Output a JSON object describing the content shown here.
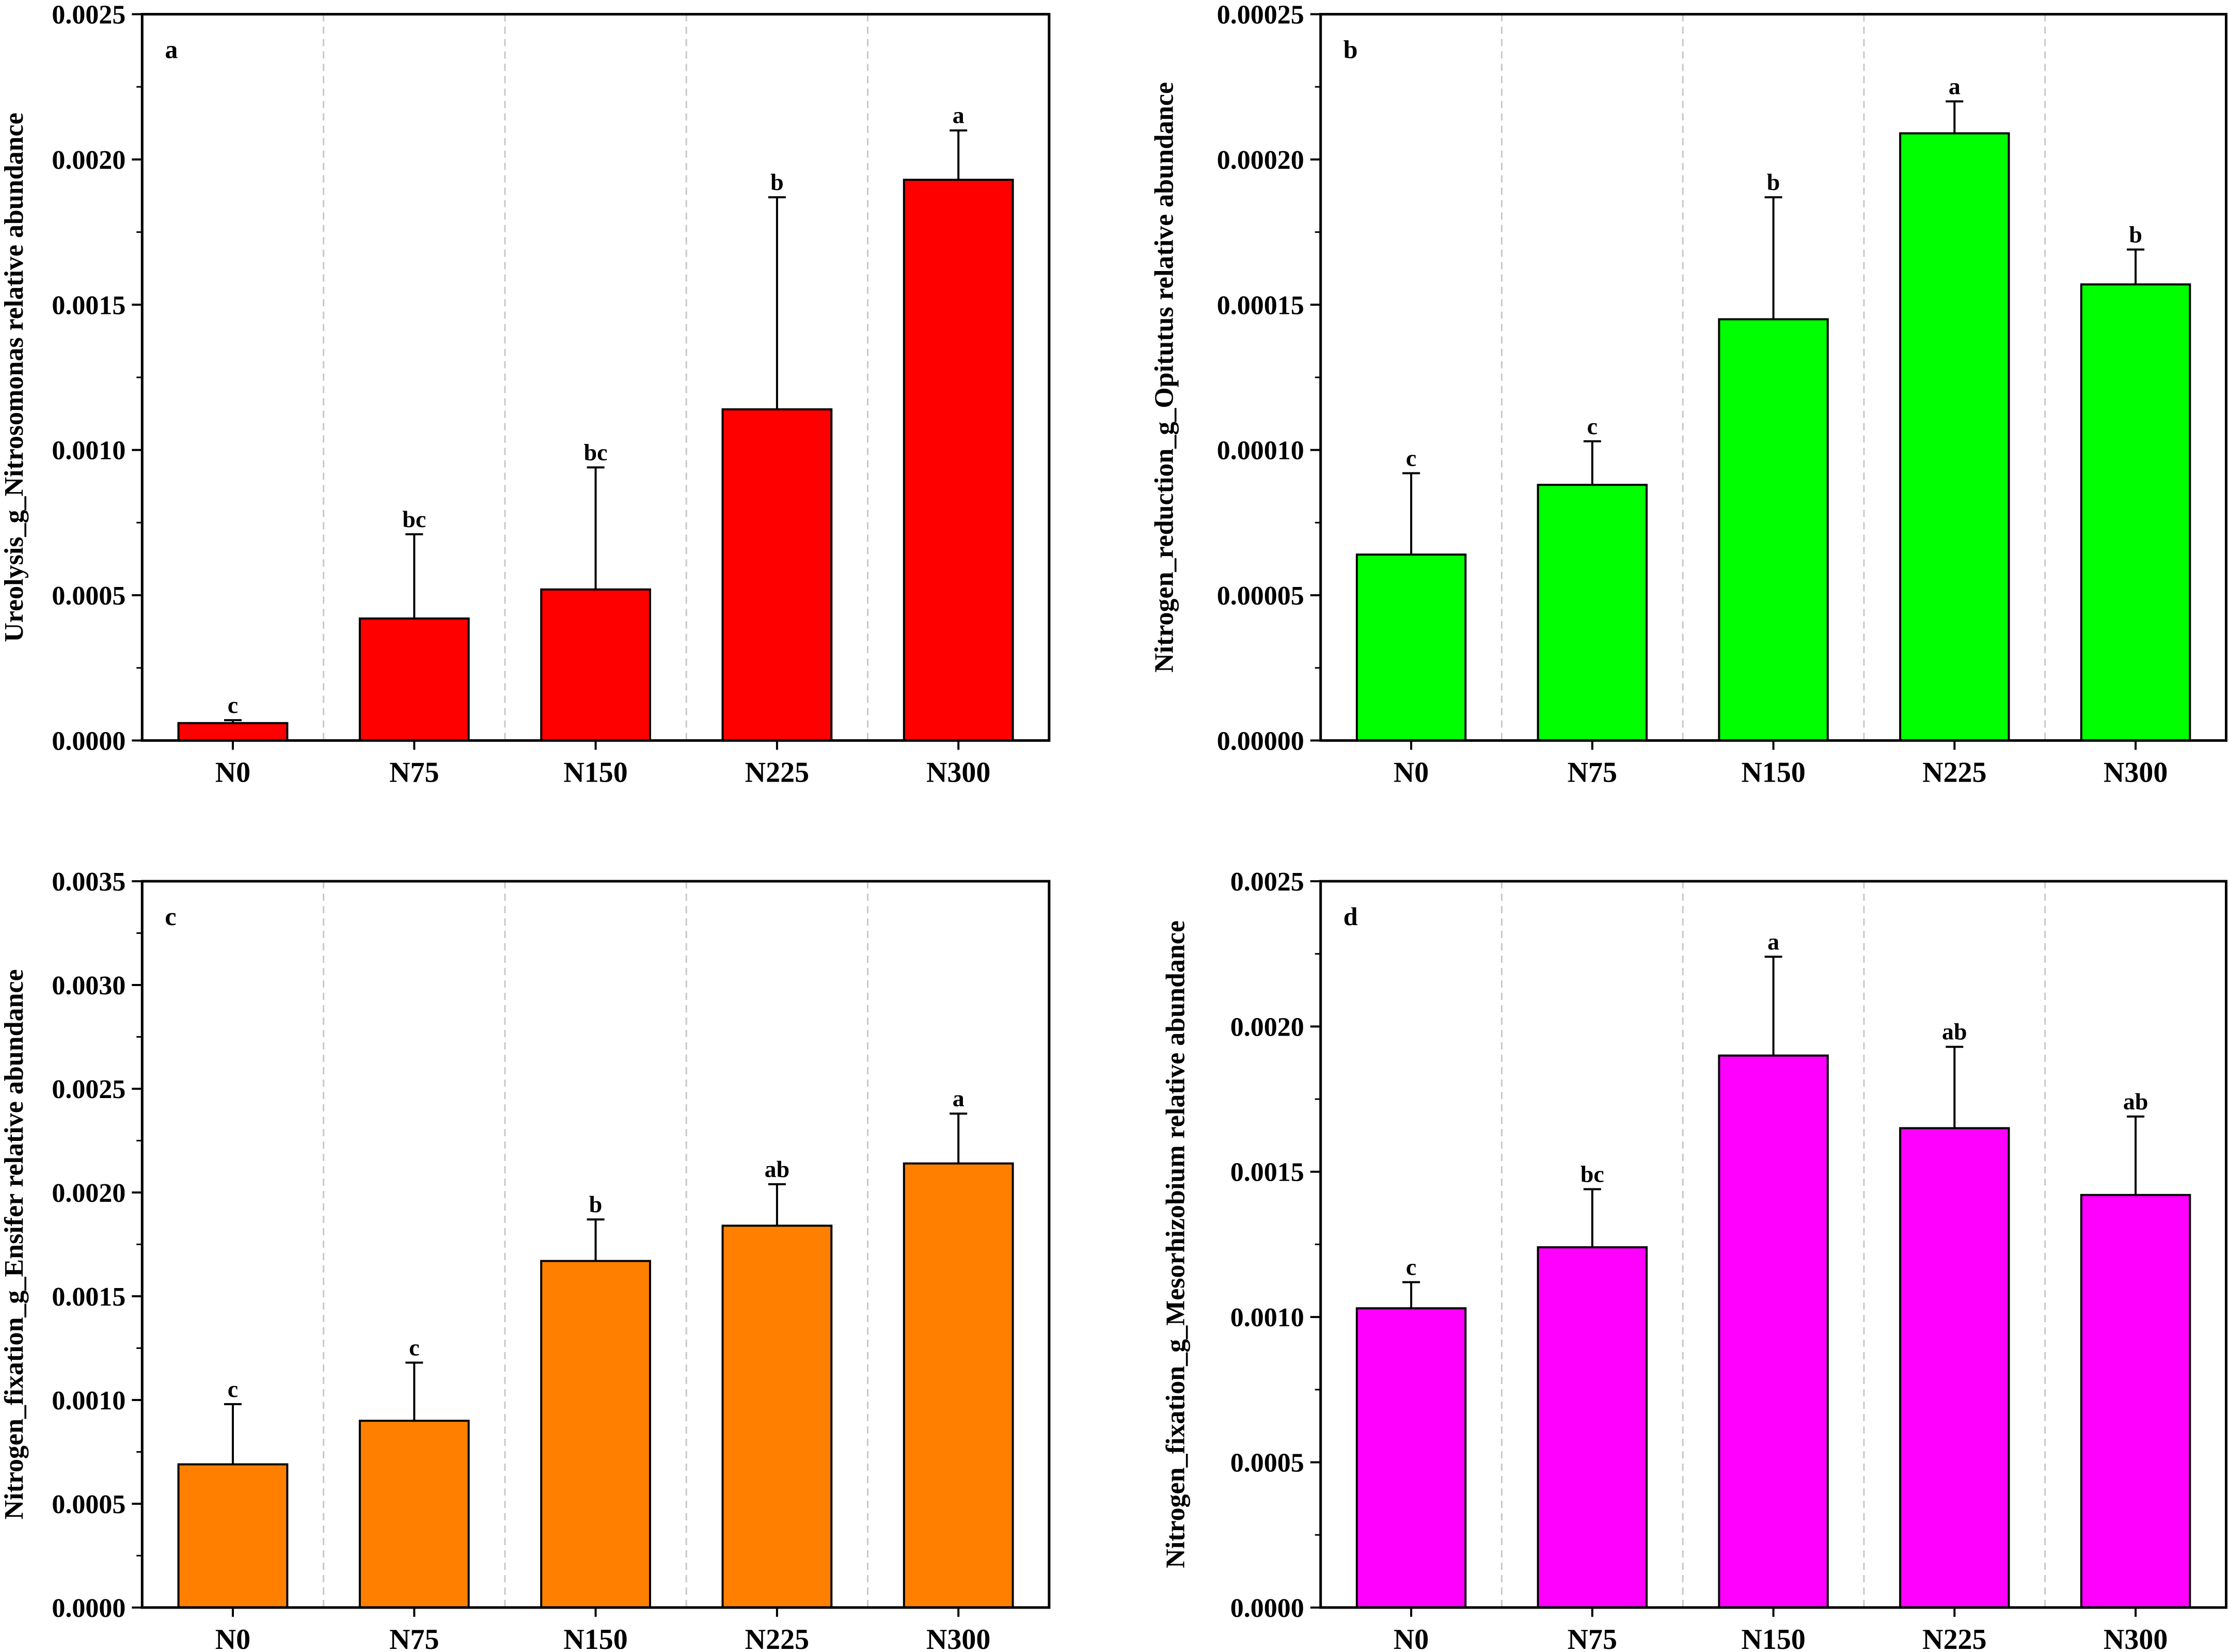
{
  "chart_data": [
    {
      "type": "bar",
      "panel": "a",
      "categories": [
        "N0",
        "N75",
        "N150",
        "N225",
        "N300"
      ],
      "values": [
        6e-05,
        0.00042,
        0.00052,
        0.00114,
        0.00193
      ],
      "errors": [
        1e-05,
        0.00029,
        0.00042,
        0.00073,
        0.00017
      ],
      "significance": [
        "c",
        "bc",
        "bc",
        "b",
        "a"
      ],
      "ylabel": "Ureolysis_g_Nitrosomonas relative abundance",
      "xlabel": "",
      "ylim": [
        0,
        0.0025
      ],
      "yticks": [
        "0.0000",
        "0.0005",
        "0.0010",
        "0.0015",
        "0.0020",
        "0.0025"
      ],
      "color": "#ff0000"
    },
    {
      "type": "bar",
      "panel": "b",
      "categories": [
        "N0",
        "N75",
        "N150",
        "N225",
        "N300"
      ],
      "values": [
        6.4e-05,
        8.8e-05,
        0.000145,
        0.000209,
        0.000157
      ],
      "errors": [
        2.8e-05,
        1.5e-05,
        4.2e-05,
        1.1e-05,
        1.2e-05
      ],
      "significance": [
        "c",
        "c",
        "b",
        "a",
        "b"
      ],
      "ylabel": "Nitrogen_reduction_g_Opitutus relative abundance",
      "xlabel": "",
      "ylim": [
        0,
        0.00025
      ],
      "yticks": [
        "0.00000",
        "0.00005",
        "0.00010",
        "0.00015",
        "0.00020",
        "0.00025"
      ],
      "color": "#00ff00"
    },
    {
      "type": "bar",
      "panel": "c",
      "categories": [
        "N0",
        "N75",
        "N150",
        "N225",
        "N300"
      ],
      "values": [
        0.00069,
        0.0009,
        0.00167,
        0.00184,
        0.00214
      ],
      "errors": [
        0.00029,
        0.00028,
        0.0002,
        0.0002,
        0.00024
      ],
      "significance": [
        "c",
        "c",
        "b",
        "ab",
        "a"
      ],
      "ylabel": "Nitrogen_fixation_g_Ensifer relative abundance",
      "xlabel": "",
      "ylim": [
        0,
        0.0035
      ],
      "yticks": [
        "0.0000",
        "0.0005",
        "0.0010",
        "0.0015",
        "0.0020",
        "0.0025",
        "0.0030",
        "0.0035"
      ],
      "color": "#ff8000"
    },
    {
      "type": "bar",
      "panel": "d",
      "categories": [
        "N0",
        "N75",
        "N150",
        "N225",
        "N300"
      ],
      "values": [
        0.00103,
        0.00124,
        0.0019,
        0.00165,
        0.00142
      ],
      "errors": [
        9e-05,
        0.0002,
        0.00034,
        0.00028,
        0.00027
      ],
      "significance": [
        "c",
        "bc",
        "a",
        "ab",
        "ab"
      ],
      "ylabel": "Nitrogen_fixation_g_Mesorhizobium relative abundance",
      "xlabel": "",
      "ylim": [
        0,
        0.0025
      ],
      "yticks": [
        "0.0000",
        "0.0005",
        "0.0010",
        "0.0015",
        "0.0020",
        "0.0025"
      ],
      "color": "#ff00ff"
    }
  ]
}
